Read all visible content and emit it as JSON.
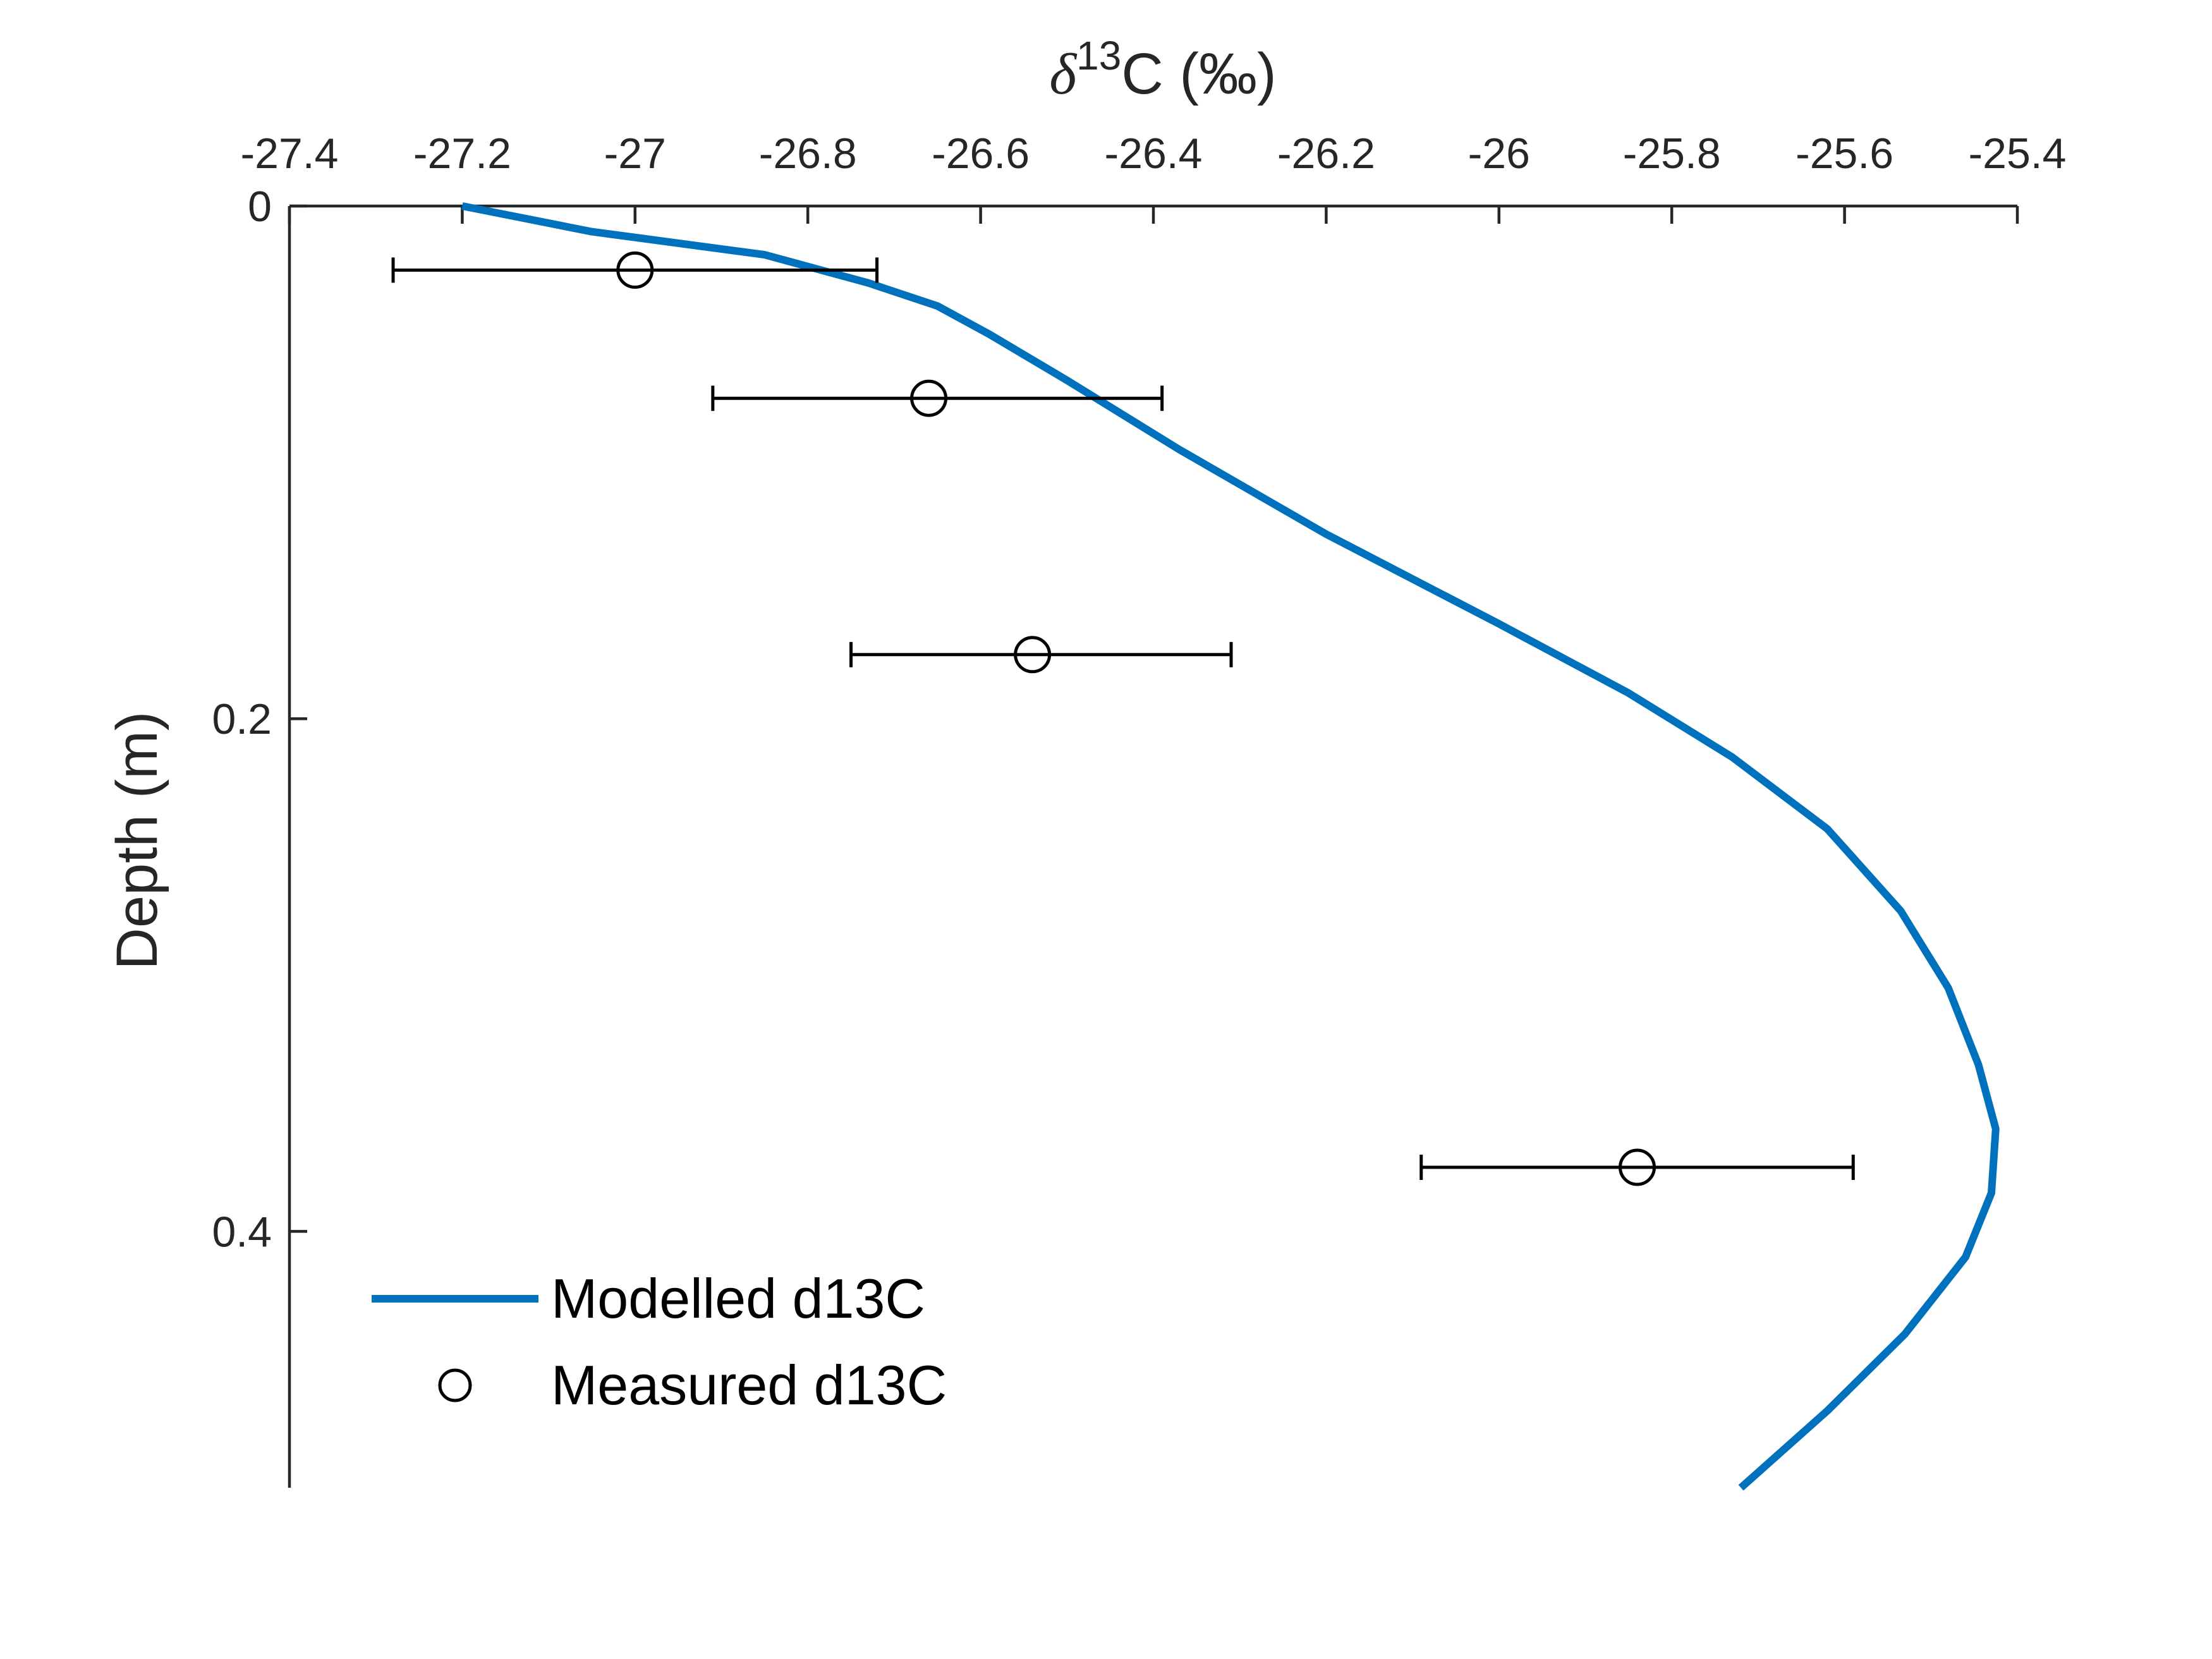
{
  "chart_data": {
    "type": "line",
    "x_axis": {
      "label_symbol": "δ",
      "label_superscript": "13",
      "label_rest": "C (‰)",
      "position": "top",
      "lim": [
        -27.4,
        -25.4
      ],
      "ticks": [
        "-27.4",
        "-27.2",
        "-27",
        "-26.8",
        "-26.6",
        "-26.4",
        "-26.2",
        "-26",
        "-25.8",
        "-25.6",
        "-25.4"
      ],
      "tick_values": [
        -27.4,
        -27.2,
        -27.0,
        -26.8,
        -26.6,
        -26.4,
        -26.2,
        -26.0,
        -25.8,
        -25.6,
        -25.4
      ]
    },
    "y_axis": {
      "label": "Depth (m)",
      "reversed": true,
      "lim": [
        0,
        0.5
      ],
      "ticks": [
        "0",
        "0.2",
        "0.4"
      ],
      "tick_values": [
        0,
        0.2,
        0.4
      ]
    },
    "grid": false,
    "legend": {
      "placement": "bottom-left",
      "entries": [
        "Modelled d13C",
        "Measured d13C"
      ]
    },
    "series": [
      {
        "name": "Modelled d13C",
        "kind": "line",
        "color": "#0072BD",
        "points": [
          [
            -27.2,
            0.0
          ],
          [
            -27.05,
            0.01
          ],
          [
            -26.85,
            0.019
          ],
          [
            -26.73,
            0.03
          ],
          [
            -26.65,
            0.039
          ],
          [
            -26.59,
            0.05
          ],
          [
            -26.5,
            0.068
          ],
          [
            -26.37,
            0.095
          ],
          [
            -26.2,
            0.128
          ],
          [
            -26.0,
            0.163
          ],
          [
            -25.85,
            0.19
          ],
          [
            -25.73,
            0.215
          ],
          [
            -25.62,
            0.243
          ],
          [
            -25.535,
            0.275
          ],
          [
            -25.48,
            0.305
          ],
          [
            -25.445,
            0.335
          ],
          [
            -25.425,
            0.36
          ],
          [
            -25.43,
            0.385
          ],
          [
            -25.46,
            0.41
          ],
          [
            -25.53,
            0.44
          ],
          [
            -25.62,
            0.47
          ],
          [
            -25.72,
            0.5
          ]
        ]
      },
      {
        "name": "Measured d13C",
        "kind": "scatter_errorbar",
        "color": "#000000",
        "points": [
          {
            "x": -27.0,
            "y": 0.025,
            "xmin": -27.28,
            "xmax": -26.72
          },
          {
            "x": -26.66,
            "y": 0.075,
            "xmin": -26.91,
            "xmax": -26.39
          },
          {
            "x": -26.54,
            "y": 0.175,
            "xmin": -26.75,
            "xmax": -26.31
          },
          {
            "x": -25.84,
            "y": 0.375,
            "xmin": -26.09,
            "xmax": -25.59
          }
        ]
      }
    ]
  }
}
